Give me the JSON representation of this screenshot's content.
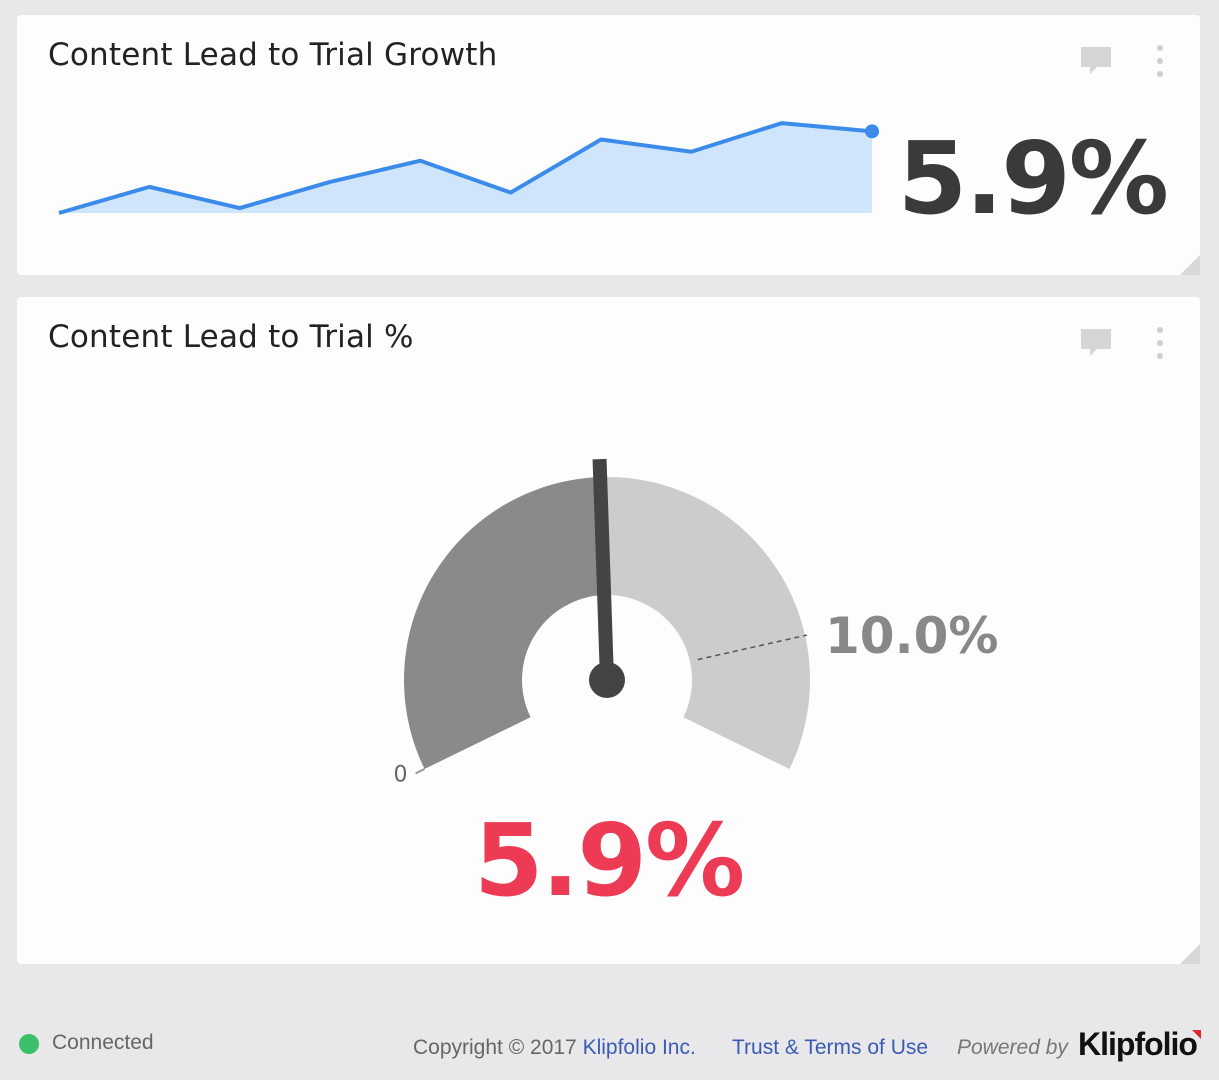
{
  "cards": [
    {
      "title": "Content Lead to Trial Growth",
      "value": "5.9%",
      "icons": [
        "comment-icon",
        "more-vertical-icon",
        "resize-handle-icon"
      ]
    },
    {
      "title": "Content Lead to Trial %",
      "value": "5.9%",
      "icons": [
        "comment-icon",
        "more-vertical-icon",
        "resize-handle-icon"
      ]
    }
  ],
  "chart_data": [
    {
      "type": "area",
      "values": [
        0,
        3.2,
        0.6,
        3.8,
        6.4,
        2.5,
        9.0,
        7.5,
        11.0,
        10.0
      ],
      "ylim": [
        0,
        12
      ],
      "grid": false,
      "color": "#3b8beb",
      "fill": "#cfe5fb"
    },
    {
      "type": "gauge",
      "value": 5.9,
      "min": 0,
      "target": 10.0,
      "max": 12,
      "min_label": "0",
      "target_label": "10.0%",
      "value_label": "5.9%",
      "colors": {
        "filled": "#8a8a8a",
        "empty": "#cccccc",
        "needle": "#444444",
        "value": "#ee3b55"
      }
    }
  ],
  "footer": {
    "status": "Connected",
    "status_color": "#3bbf6b",
    "copyright_prefix": "Copyright © 2017",
    "company_link": "Klipfolio Inc.",
    "terms_link": "Trust & Terms of Use",
    "powered_by": "Powered by",
    "logo": "Klipfolio"
  }
}
